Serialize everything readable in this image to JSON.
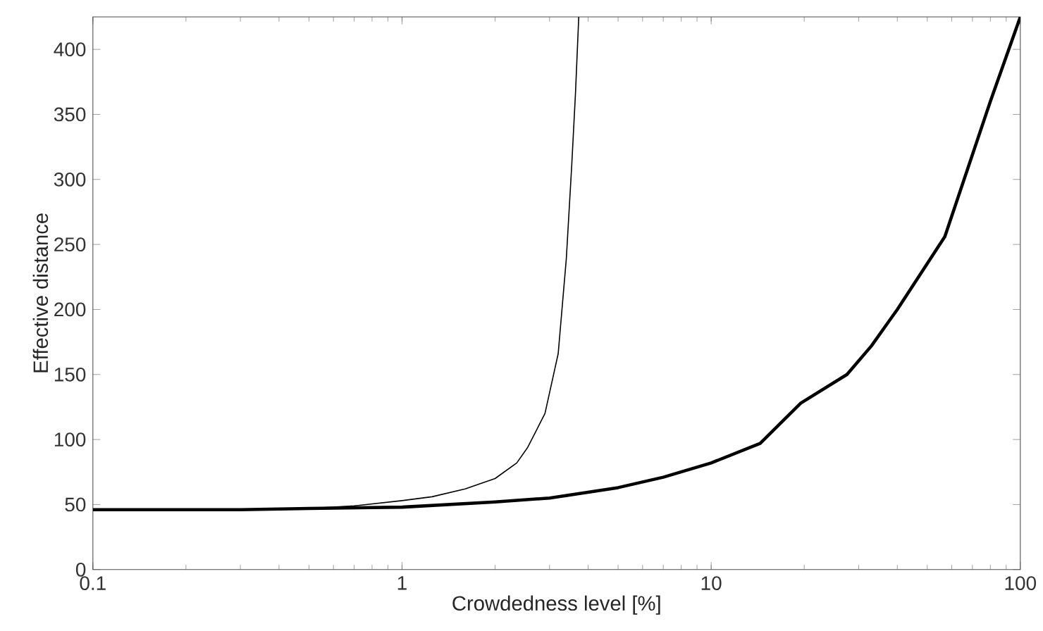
{
  "chart_data": {
    "type": "line",
    "xlabel": "Crowdedness level [%]",
    "ylabel": "Effective distance",
    "log": "x",
    "xlim": [
      0.1,
      100
    ],
    "xticks": [
      0.1,
      1,
      10,
      100
    ],
    "ylim": [
      0,
      425
    ],
    "yticks": [
      0,
      50,
      100,
      150,
      200,
      250,
      300,
      350,
      400
    ],
    "marker": "none",
    "line_style": "solid",
    "series": [
      {
        "color": "#000000",
        "x": [
          0.1,
          0.3,
          0.5,
          0.7,
          1,
          1.25,
          1.6,
          2,
          2.35,
          2.55,
          2.9,
          3.2,
          3.4,
          3.54,
          3.64,
          3.73
        ],
        "values": [
          46,
          46,
          47,
          49,
          53,
          56,
          62,
          70,
          82,
          94,
          120,
          166,
          239,
          311,
          366,
          425
        ]
      },
      {
        "color": "#000000",
        "x": [
          0.1,
          0.3,
          0.5,
          1,
          2,
          3,
          5,
          7,
          10,
          14.4,
          19.5,
          27.5,
          33,
          40,
          57,
          80,
          100
        ],
        "values": [
          46,
          46,
          47,
          48,
          52,
          55,
          63,
          71,
          82,
          97,
          128,
          150,
          172,
          200,
          256,
          360,
          425
        ]
      }
    ]
  }
}
